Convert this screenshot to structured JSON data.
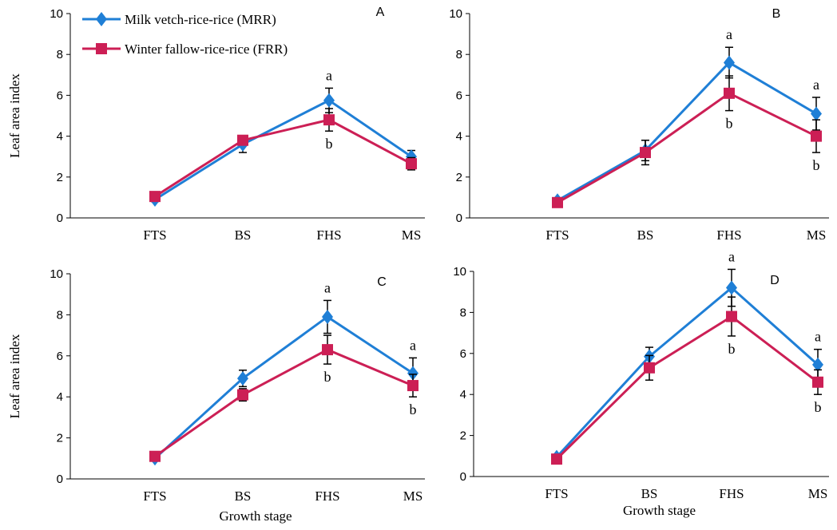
{
  "chart_data": [
    {
      "type": "line",
      "panel_label": "A",
      "categories": [
        "FTS",
        "BS",
        "FHS",
        "MS"
      ],
      "ylabel": "Leaf area index",
      "xlabel": "",
      "ylim": [
        0,
        10
      ],
      "yticks": [
        0,
        2,
        4,
        6,
        8,
        10
      ],
      "legend": "top-left",
      "series": [
        {
          "name": "Milk vetch-rice-rice (MRR)",
          "color": "#1f7fd6",
          "marker": "diamond",
          "values": [
            0.9,
            3.6,
            5.75,
            3.0
          ],
          "error": [
            0.1,
            0.4,
            0.6,
            0.3
          ]
        },
        {
          "name": "Winter fallow-rice-rice (FRR)",
          "color": "#cc1f55",
          "marker": "square",
          "values": [
            1.05,
            3.8,
            4.8,
            2.65
          ],
          "error": [
            0.1,
            0.2,
            0.55,
            0.3
          ]
        }
      ],
      "annotations": [
        {
          "category": "FHS",
          "above": "a",
          "below": "b"
        }
      ]
    },
    {
      "type": "line",
      "panel_label": "B",
      "categories": [
        "FTS",
        "BS",
        "FHS",
        "MS"
      ],
      "ylabel": "",
      "xlabel": "",
      "ylim": [
        0,
        10
      ],
      "yticks": [
        0,
        2,
        4,
        6,
        8,
        10
      ],
      "series": [
        {
          "name": "Milk vetch-rice-rice (MRR)",
          "color": "#1f7fd6",
          "marker": "diamond",
          "values": [
            0.85,
            3.3,
            7.6,
            5.1
          ],
          "error": [
            0.1,
            0.5,
            0.75,
            0.8
          ]
        },
        {
          "name": "Winter fallow-rice-rice (FRR)",
          "color": "#cc1f55",
          "marker": "square",
          "values": [
            0.75,
            3.2,
            6.1,
            4.0
          ],
          "error": [
            0.1,
            0.6,
            0.85,
            0.8
          ]
        }
      ],
      "annotations": [
        {
          "category": "FHS",
          "above": "a",
          "below": "b"
        },
        {
          "category": "MS",
          "above": "a",
          "below": "b"
        }
      ]
    },
    {
      "type": "line",
      "panel_label": "C",
      "categories": [
        "FTS",
        "BS",
        "FHS",
        "MS"
      ],
      "ylabel": "Leaf area index",
      "xlabel": "Growth stage",
      "ylim": [
        0,
        10
      ],
      "yticks": [
        0,
        2,
        4,
        6,
        8,
        10
      ],
      "series": [
        {
          "name": "Milk vetch-rice-rice (MRR)",
          "color": "#1f7fd6",
          "marker": "diamond",
          "values": [
            1.0,
            4.9,
            7.9,
            5.15
          ],
          "error": [
            0.1,
            0.4,
            0.8,
            0.75
          ]
        },
        {
          "name": "Winter fallow-rice-rice (FRR)",
          "color": "#cc1f55",
          "marker": "square",
          "values": [
            1.1,
            4.1,
            6.3,
            4.55
          ],
          "error": [
            0.1,
            0.3,
            0.7,
            0.55
          ]
        }
      ],
      "annotations": [
        {
          "category": "FHS",
          "above": "a",
          "below": "b"
        },
        {
          "category": "MS",
          "above": "a",
          "below": "b"
        }
      ]
    },
    {
      "type": "line",
      "panel_label": "D",
      "categories": [
        "FTS",
        "BS",
        "FHS",
        "MS"
      ],
      "ylabel": "",
      "xlabel": "Growth stage",
      "ylim": [
        0,
        10
      ],
      "yticks": [
        0,
        2,
        4,
        6,
        8,
        10
      ],
      "series": [
        {
          "name": "Milk vetch-rice-rice (MRR)",
          "color": "#1f7fd6",
          "marker": "diamond",
          "values": [
            0.95,
            5.85,
            9.2,
            5.45
          ],
          "error": [
            0.1,
            0.45,
            0.9,
            0.75
          ]
        },
        {
          "name": "Winter fallow-rice-rice (FRR)",
          "color": "#cc1f55",
          "marker": "square",
          "values": [
            0.85,
            5.3,
            7.8,
            4.6
          ],
          "error": [
            0.1,
            0.6,
            0.95,
            0.6
          ]
        }
      ],
      "annotations": [
        {
          "category": "FHS",
          "above": "a",
          "below": "b"
        },
        {
          "category": "MS",
          "above": "a",
          "below": "b"
        }
      ]
    }
  ]
}
